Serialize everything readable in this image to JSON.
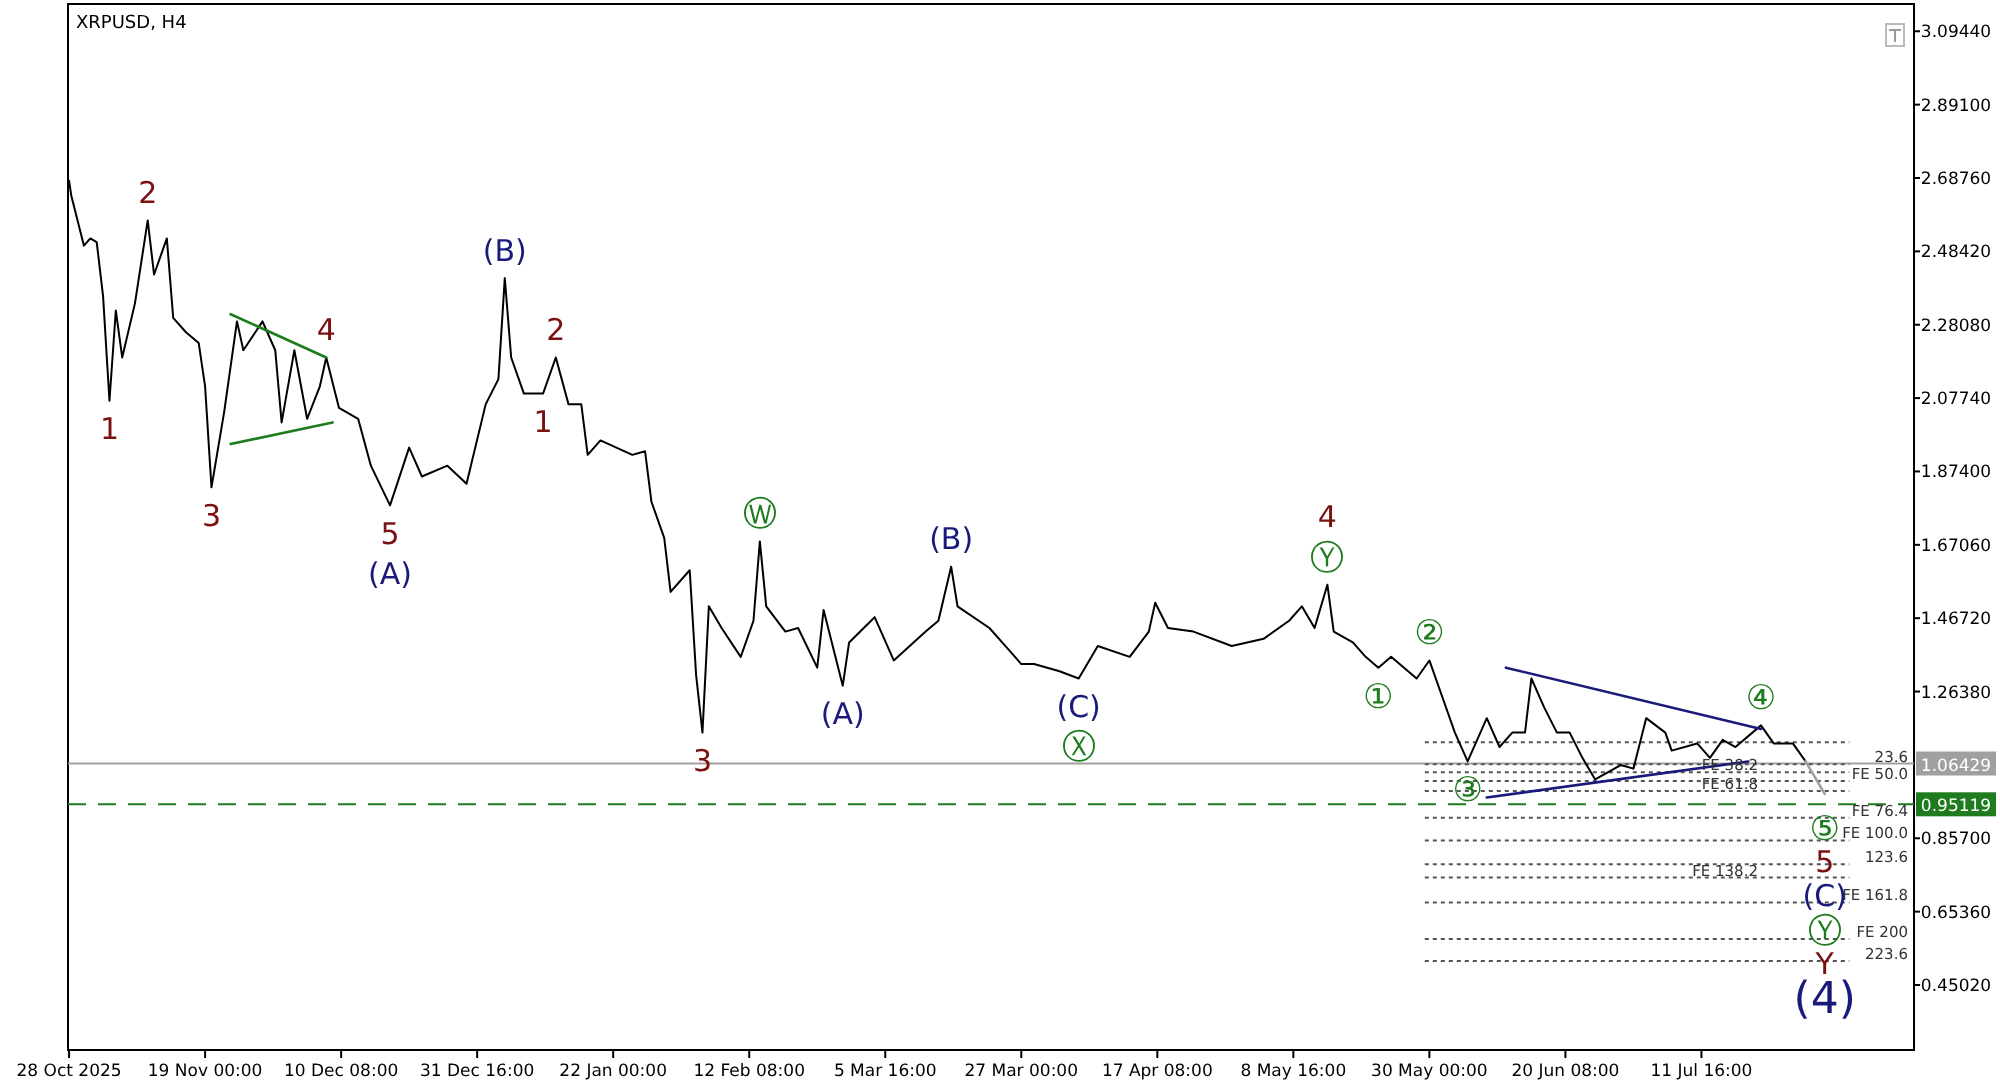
{
  "chart_data": {
    "type": "line",
    "title": "XRPUSD, H4",
    "xlim": [
      "2025-10-28T12:00",
      "2026-08-14T00:00"
    ],
    "ylim": [
      0.27,
      3.17
    ],
    "xticks": [
      {
        "value": "2025-10-28T16:00",
        "label": "28 Oct 2025"
      },
      {
        "value": "2025-11-19T00:00",
        "label": "19 Nov 00:00"
      },
      {
        "value": "2025-12-10T08:00",
        "label": "10 Dec 08:00"
      },
      {
        "value": "2025-12-31T16:00",
        "label": "31 Dec 16:00"
      },
      {
        "value": "2026-01-22T00:00",
        "label": "22 Jan 00:00"
      },
      {
        "value": "2026-02-12T08:00",
        "label": "12 Feb 08:00"
      },
      {
        "value": "2026-03-05T16:00",
        "label": "5 Mar 16:00"
      },
      {
        "value": "2026-03-27T00:00",
        "label": "27 Mar 00:00"
      },
      {
        "value": "2026-04-17T08:00",
        "label": "17 Apr 08:00"
      },
      {
        "value": "2026-05-08T16:00",
        "label": "8 May 16:00"
      },
      {
        "value": "2026-05-30T00:00",
        "label": "30 May 00:00"
      },
      {
        "value": "2026-06-20T08:00",
        "label": "20 Jun 08:00"
      },
      {
        "value": "2026-07-11T16:00",
        "label": "11 Jul 16:00"
      }
    ],
    "yticks": [
      {
        "value": 3.0944,
        "label": "3.09440"
      },
      {
        "value": 2.891,
        "label": "2.89100"
      },
      {
        "value": 2.6876,
        "label": "2.68760"
      },
      {
        "value": 2.4842,
        "label": "2.48420"
      },
      {
        "value": 2.2808,
        "label": "2.28080"
      },
      {
        "value": 2.0774,
        "label": "2.07740"
      },
      {
        "value": 1.874,
        "label": "1.87400"
      },
      {
        "value": 1.6706,
        "label": "1.67060"
      },
      {
        "value": 1.4672,
        "label": "1.46720"
      },
      {
        "value": 1.2638,
        "label": "1.26380"
      },
      {
        "value": 0.857,
        "label": "0.85700"
      },
      {
        "value": 0.6536,
        "label": "0.65360"
      },
      {
        "value": 0.4502,
        "label": "0.45020"
      }
    ],
    "series": [
      {
        "color": "#000000",
        "x": [
          "2025-10-28T16:00",
          "2025-10-29",
          "2025-10-30",
          "2025-10-31",
          "2025-11-01",
          "2025-11-02",
          "2025-11-03",
          "2025-11-04",
          "2025-11-05",
          "2025-11-06",
          "2025-11-08",
          "2025-11-10",
          "2025-11-11",
          "2025-11-13",
          "2025-11-14",
          "2025-11-16",
          "2025-11-18",
          "2025-11-19",
          "2025-11-20",
          "2025-11-22",
          "2025-11-24",
          "2025-11-25",
          "2025-11-28",
          "2025-11-30",
          "2025-12-01",
          "2025-12-03",
          "2025-12-05",
          "2025-12-07",
          "2025-12-08",
          "2025-12-10",
          "2025-12-13",
          "2025-12-15",
          "2025-12-18",
          "2025-12-21",
          "2025-12-23",
          "2025-12-27",
          "2025-12-30",
          "2026-01-02",
          "2026-01-04",
          "2026-01-05",
          "2026-01-06",
          "2026-01-08",
          "2026-01-11",
          "2026-01-13",
          "2026-01-15",
          "2026-01-17",
          "2026-01-18",
          "2026-01-20",
          "2026-01-25",
          "2026-01-27",
          "2026-01-28",
          "2026-01-30",
          "2026-01-31",
          "2026-02-03",
          "2026-02-04",
          "2026-02-05",
          "2026-02-06",
          "2026-02-08",
          "2026-02-11",
          "2026-02-13",
          "2026-02-14",
          "2026-02-15",
          "2026-02-18",
          "2026-02-20",
          "2026-02-23",
          "2026-02-24",
          "2026-02-27",
          "2026-02-28",
          "2026-03-04",
          "2026-03-07",
          "2026-03-12",
          "2026-03-14",
          "2026-03-16",
          "2026-03-17",
          "2026-03-22",
          "2026-03-24",
          "2026-03-27",
          "2026-03-29",
          "2026-04-02",
          "2026-04-05",
          "2026-04-08",
          "2026-04-13",
          "2026-04-16",
          "2026-04-17",
          "2026-04-19",
          "2026-04-23",
          "2026-04-29",
          "2026-05-04",
          "2026-05-08",
          "2026-05-10",
          "2026-05-12",
          "2026-05-14",
          "2026-05-15",
          "2026-05-18",
          "2026-05-20",
          "2026-05-22",
          "2026-05-24",
          "2026-05-28",
          "2026-05-30",
          "2026-06-01",
          "2026-06-03",
          "2026-06-05",
          "2026-06-08",
          "2026-06-10",
          "2026-06-12",
          "2026-06-14",
          "2026-06-15",
          "2026-06-17",
          "2026-06-19",
          "2026-06-21",
          "2026-06-23",
          "2026-06-25",
          "2026-06-29",
          "2026-07-01",
          "2026-07-03",
          "2026-07-06",
          "2026-07-07",
          "2026-07-11",
          "2026-07-13",
          "2026-07-15",
          "2026-07-17",
          "2026-07-21",
          "2026-07-23",
          "2026-07-26",
          "2026-07-28"
        ],
        "values": [
          2.68,
          2.64,
          2.57,
          2.5,
          2.52,
          2.51,
          2.36,
          2.07,
          2.32,
          2.19,
          2.34,
          2.57,
          2.42,
          2.52,
          2.3,
          2.26,
          2.23,
          2.11,
          1.83,
          2.04,
          2.29,
          2.21,
          2.29,
          2.21,
          2.01,
          2.21,
          2.02,
          2.11,
          2.19,
          2.05,
          2.02,
          1.89,
          1.78,
          1.94,
          1.86,
          1.89,
          1.84,
          2.06,
          2.13,
          2.41,
          2.19,
          2.09,
          2.09,
          2.19,
          2.06,
          2.06,
          1.92,
          1.96,
          1.92,
          1.93,
          1.79,
          1.69,
          1.54,
          1.6,
          1.31,
          1.15,
          1.5,
          1.44,
          1.36,
          1.46,
          1.68,
          1.5,
          1.43,
          1.44,
          1.33,
          1.49,
          1.28,
          1.4,
          1.47,
          1.35,
          1.43,
          1.46,
          1.61,
          1.5,
          1.44,
          1.4,
          1.34,
          1.34,
          1.32,
          1.3,
          1.39,
          1.36,
          1.43,
          1.51,
          1.44,
          1.43,
          1.39,
          1.41,
          1.46,
          1.5,
          1.44,
          1.56,
          1.43,
          1.4,
          1.36,
          1.33,
          1.36,
          1.3,
          1.35,
          1.25,
          1.15,
          1.07,
          1.19,
          1.11,
          1.15,
          1.15,
          1.3,
          1.22,
          1.15,
          1.15,
          1.08,
          1.02,
          1.06,
          1.05,
          1.19,
          1.15,
          1.1,
          1.12,
          1.08,
          1.13,
          1.11,
          1.17,
          1.12,
          1.12,
          1.07
        ]
      },
      {
        "color": "#1e7b1e",
        "x": [
          "2025-11-23",
          "2025-12-08"
        ],
        "values": [
          2.31,
          2.19
        ]
      },
      {
        "color": "#1e7b1e",
        "x": [
          "2025-11-23",
          "2025-12-09"
        ],
        "values": [
          1.95,
          2.01
        ]
      },
      {
        "color": "#1a1a7a",
        "x": [
          "2026-06-11",
          "2026-07-21"
        ],
        "values": [
          1.33,
          1.16
        ]
      },
      {
        "color": "#1a1a7a",
        "x": [
          "2026-06-08",
          "2026-07-19"
        ],
        "values": [
          0.97,
          1.07
        ]
      },
      {
        "color": "#a0a0a0",
        "x": [
          "2026-07-28",
          "2026-07-31"
        ],
        "values": [
          1.07,
          0.98
        ]
      }
    ],
    "ref_lines": [
      {
        "axis": "y",
        "value": 1.06429,
        "label": "1.06429",
        "color": "#a0a0a0",
        "line_style": "solid"
      },
      {
        "axis": "y",
        "value": 0.95119,
        "label": "0.95119",
        "color": "#1e7b1e",
        "line_style": "dashed"
      },
      {
        "axis": "y",
        "value": 1.123,
        "color": "#555555",
        "line_style": "dotted"
      },
      {
        "axis": "y",
        "value": 1.062,
        "color": "#555555",
        "line_style": "dotted"
      },
      {
        "axis": "y",
        "value": 1.04,
        "label": "FE 38.2",
        "color": "#555555",
        "line_style": "dotted"
      },
      {
        "axis": "y",
        "value": 1.016,
        "label": "FE 50.0",
        "color": "#555555",
        "line_style": "dotted"
      },
      {
        "axis": "y",
        "value": 0.988,
        "label": "FE 61.8",
        "color": "#555555",
        "line_style": "dotted"
      },
      {
        "axis": "y",
        "value": 0.914,
        "label": "FE 76.4",
        "color": "#555555",
        "line_style": "dotted"
      },
      {
        "axis": "y",
        "value": 0.851,
        "label": "FE 100.0",
        "color": "#555555",
        "line_style": "dotted"
      },
      {
        "axis": "y",
        "value": 0.785,
        "color": "#555555",
        "line_style": "dotted"
      },
      {
        "axis": "y",
        "value": 0.748,
        "label": "FE 138.2",
        "color": "#555555",
        "line_style": "dotted"
      },
      {
        "axis": "y",
        "value": 0.679,
        "label": "FE 161.8",
        "color": "#555555",
        "line_style": "dotted"
      },
      {
        "axis": "y",
        "value": 0.578,
        "label": "FE 200",
        "color": "#555555",
        "line_style": "dotted"
      },
      {
        "axis": "y",
        "value": 0.517,
        "color": "#555555",
        "line_style": "dotted"
      }
    ],
    "annotations": [
      "23.6",
      "123.6",
      "223.6",
      {
        "text": "1",
        "x": "2025-11-04",
        "y": 2.07
      },
      {
        "text": "2",
        "x": "2025-11-10",
        "y": 2.57
      },
      {
        "text": "3",
        "x": "2025-11-20",
        "y": 1.83
      },
      {
        "text": "4",
        "x": "2025-12-08",
        "y": 2.19
      },
      {
        "text": "5",
        "x": "2025-12-18",
        "y": 1.78
      },
      {
        "text": "(A)",
        "x": "2025-12-18",
        "y": 1.78
      },
      {
        "text": "(B)",
        "x": "2026-01-05",
        "y": 2.41
      },
      {
        "text": "1",
        "x": "2026-01-11",
        "y": 2.09
      },
      {
        "text": "2",
        "x": "2026-01-13",
        "y": 2.19
      },
      {
        "text": "3",
        "x": "2026-02-05",
        "y": 1.15
      },
      {
        "text": "Ⓦ",
        "x": "2026-02-14",
        "y": 1.68
      },
      {
        "text": "(A)",
        "x": "2026-02-27",
        "y": 1.28
      },
      {
        "text": "(B)",
        "x": "2026-03-16",
        "y": 1.61
      },
      {
        "text": "(C)",
        "x": "2026-04-05",
        "y": 1.3
      },
      {
        "text": "Ⓧ",
        "x": "2026-04-05",
        "y": 1.3
      },
      {
        "text": "Ⓨ",
        "x": "2026-05-14",
        "y": 1.56
      },
      {
        "text": "4",
        "x": "2026-05-14",
        "y": 1.56
      },
      {
        "text": "①",
        "x": "2026-05-22",
        "y": 1.33
      },
      {
        "text": "②",
        "x": "2026-05-30",
        "y": 1.35
      },
      {
        "text": "③",
        "x": "2026-06-05",
        "y": 1.07
      },
      {
        "text": "④",
        "x": "2026-07-21",
        "y": 1.17
      },
      "⑤",
      "5",
      "(C)",
      "Ⓨ",
      "Y",
      "(4)"
    ]
  }
}
